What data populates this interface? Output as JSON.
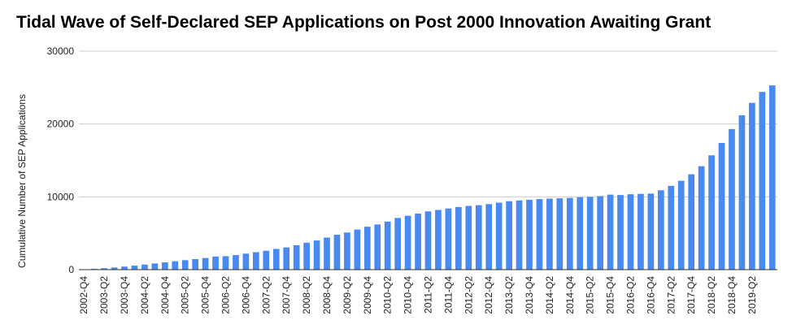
{
  "chart_data": {
    "type": "bar",
    "title": "Tidal Wave of Self-Declared SEP Applications on Post 2000 Innovation Awaiting Grant",
    "xlabel": "",
    "ylabel": "Cumulative Number of SEP Applications",
    "ylim": [
      0,
      30000
    ],
    "yticks": [
      0,
      10000,
      20000,
      30000
    ],
    "grid": true,
    "bar_color": "#4a8af0",
    "categories": [
      "2002-Q4",
      "2003-Q1",
      "2003-Q2",
      "2003-Q3",
      "2003-Q4",
      "2004-Q1",
      "2004-Q2",
      "2004-Q3",
      "2004-Q4",
      "2005-Q1",
      "2005-Q2",
      "2005-Q3",
      "2005-Q4",
      "2006-Q1",
      "2006-Q2",
      "2006-Q3",
      "2006-Q4",
      "2007-Q1",
      "2007-Q2",
      "2007-Q3",
      "2007-Q4",
      "2008-Q1",
      "2008-Q2",
      "2008-Q3",
      "2008-Q4",
      "2009-Q1",
      "2009-Q2",
      "2009-Q3",
      "2009-Q4",
      "2010-Q1",
      "2010-Q2",
      "2010-Q3",
      "2010-Q4",
      "2011-Q1",
      "2011-Q2",
      "2011-Q3",
      "2011-Q4",
      "2012-Q1",
      "2012-Q2",
      "2012-Q3",
      "2012-Q4",
      "2013-Q1",
      "2013-Q2",
      "2013-Q3",
      "2013-Q4",
      "2014-Q1",
      "2014-Q2",
      "2014-Q3",
      "2014-Q4",
      "2015-Q1",
      "2015-Q2",
      "2015-Q3",
      "2015-Q4",
      "2016-Q1",
      "2016-Q2",
      "2016-Q3",
      "2016-Q4",
      "2017-Q1",
      "2017-Q2",
      "2017-Q3",
      "2017-Q4",
      "2018-Q1",
      "2018-Q2",
      "2018-Q3",
      "2018-Q4",
      "2019-Q1",
      "2019-Q2",
      "2019-Q3",
      "2019-Q4"
    ],
    "tick_labels": [
      "2002-Q4",
      "2003-Q2",
      "2003-Q4",
      "2004-Q2",
      "2004-Q4",
      "2005-Q2",
      "2005-Q4",
      "2006-Q2",
      "2006-Q4",
      "2007-Q2",
      "2007-Q4",
      "2008-Q2",
      "2008-Q4",
      "2009-Q2",
      "2009-Q4",
      "2010-Q2",
      "2010-Q4",
      "2011-Q2",
      "2011-Q4",
      "2012-Q2",
      "2012-Q4",
      "2013-Q2",
      "2013-Q4",
      "2014-Q2",
      "2014-Q4",
      "2015-Q2",
      "2015-Q4",
      "2016-Q2",
      "2016-Q4",
      "2017-Q2",
      "2017-Q4",
      "2018-Q2",
      "2018-Q4",
      "2019-Q2"
    ],
    "values": [
      50,
      120,
      200,
      300,
      420,
      550,
      700,
      850,
      1000,
      1150,
      1300,
      1450,
      1600,
      1800,
      1850,
      2000,
      2200,
      2400,
      2600,
      2850,
      3050,
      3350,
      3700,
      4000,
      4400,
      4800,
      5100,
      5500,
      5900,
      6200,
      6600,
      7100,
      7400,
      7700,
      8000,
      8200,
      8400,
      8600,
      8750,
      8850,
      9000,
      9200,
      9400,
      9500,
      9600,
      9700,
      9750,
      9800,
      9850,
      9950,
      10000,
      10100,
      10300,
      10250,
      10350,
      10400,
      10450,
      10900,
      11500,
      12200,
      13100,
      14200,
      15700,
      17400,
      19300,
      21200,
      22900,
      24400,
      25300
    ]
  }
}
